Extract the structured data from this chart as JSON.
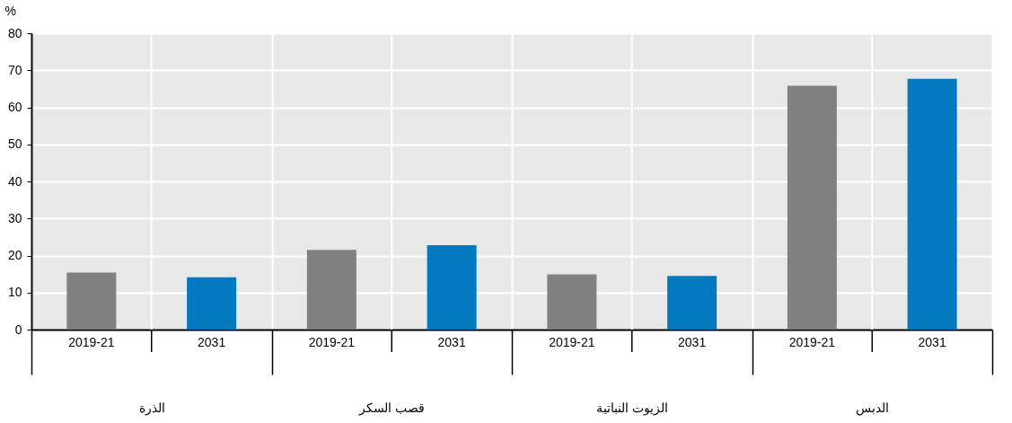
{
  "chart_data": {
    "type": "bar",
    "ylabel": "%",
    "categories": [
      "الذرة",
      "قصب السكر",
      "الزيوت النباتية",
      "الدبس"
    ],
    "series": [
      {
        "name": "2019-21",
        "color": "#808080",
        "values": [
          15.4,
          21.5,
          14.9,
          65.8
        ]
      },
      {
        "name": "2031",
        "color": "#0379bf",
        "values": [
          14.1,
          22.8,
          14.5,
          67.7
        ]
      }
    ],
    "ylim": [
      0,
      80
    ],
    "yticks": [
      0,
      10,
      20,
      30,
      40,
      50,
      60,
      70,
      80
    ],
    "grid": true,
    "legend": false
  }
}
